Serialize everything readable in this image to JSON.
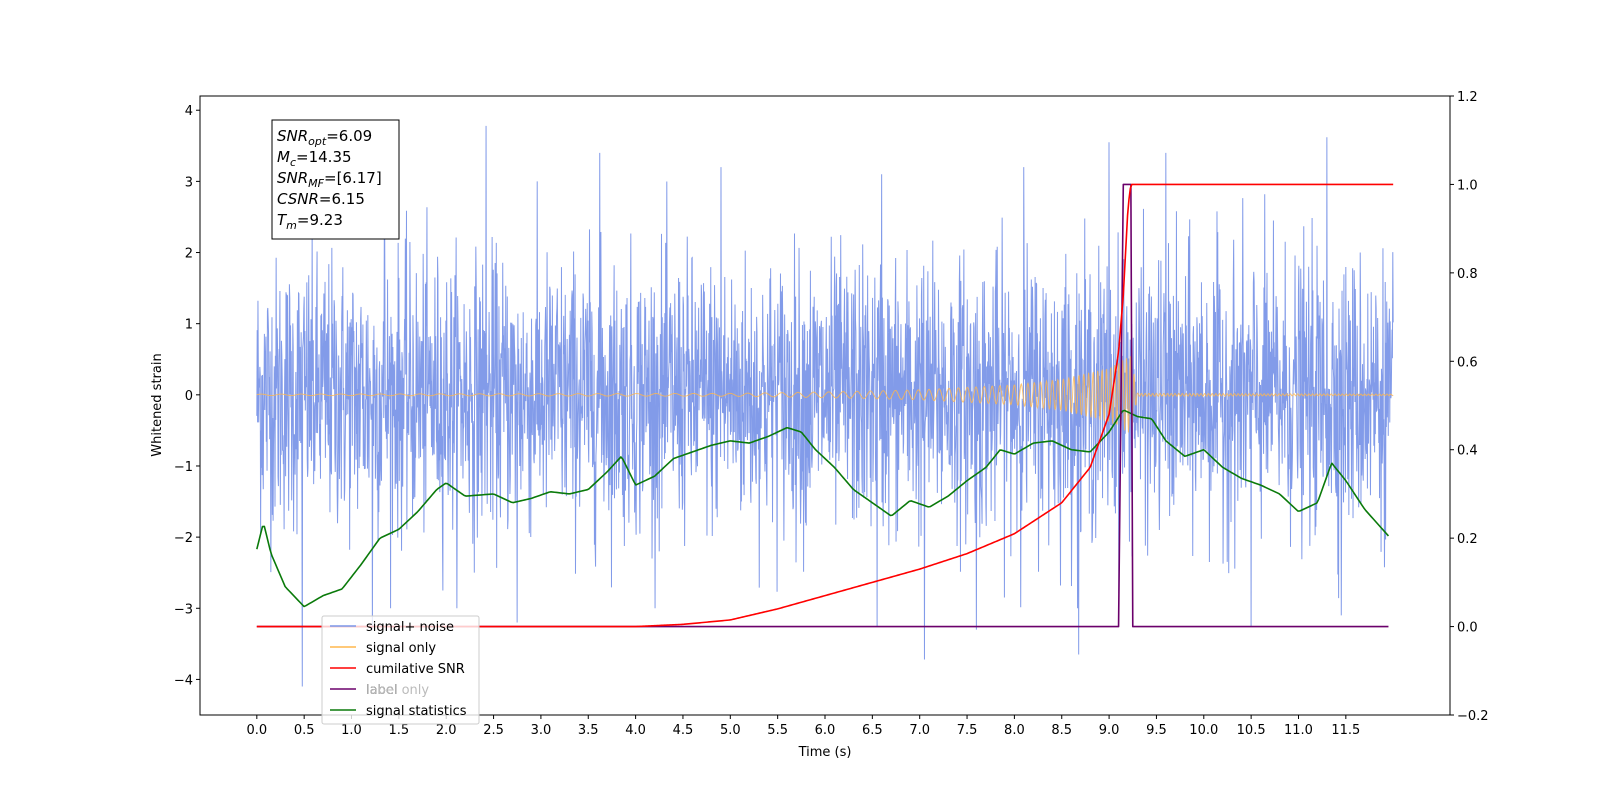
{
  "chart_data": {
    "type": "line",
    "title": "",
    "xlabel": "Time (s)",
    "ylabel": "Whitened strain",
    "ylabel_right": "",
    "xlim": [
      -0.6,
      12.6
    ],
    "ylim_left": [
      -4.5,
      4.2
    ],
    "ylim_right": [
      -0.2,
      1.2
    ],
    "x_ticks": [
      0.0,
      0.5,
      1.0,
      1.5,
      2.0,
      2.5,
      3.0,
      3.5,
      4.0,
      4.5,
      5.0,
      5.5,
      6.0,
      6.5,
      7.0,
      7.5,
      8.0,
      8.5,
      9.0,
      9.5,
      10.0,
      10.5,
      11.0,
      11.5
    ],
    "x_tick_labels": [
      "0.0",
      "0.5",
      "1.0",
      "1.5",
      "2.0",
      "2.5",
      "3.0",
      "3.5",
      "4.0",
      "4.5",
      "5.0",
      "5.5",
      "6.0",
      "6.5",
      "7.0",
      "7.5",
      "8.0",
      "8.5",
      "9.0",
      "9.5",
      "10.0",
      "10.5",
      "11.0",
      "11.5"
    ],
    "y_ticks_left": [
      -4,
      -3,
      -2,
      -1,
      0,
      1,
      2,
      3,
      4
    ],
    "y_tick_labels_left": [
      "−4",
      "−3",
      "−2",
      "−1",
      "0",
      "1",
      "2",
      "3",
      "4"
    ],
    "y_ticks_right": [
      -0.2,
      0.0,
      0.2,
      0.4,
      0.6,
      0.8,
      1.0,
      1.2
    ],
    "y_tick_labels_right": [
      "−0.2",
      "0.0",
      "0.2",
      "0.4",
      "0.6",
      "0.8",
      "1.0",
      "1.2"
    ],
    "grid": false,
    "legend_position": "lower-left",
    "annotation": {
      "lines": [
        {
          "sym": "SNR",
          "sub": "opt",
          "val": "=6.09"
        },
        {
          "sym": "M",
          "sub": "c",
          "val": "=14.35"
        },
        {
          "sym": "SNR",
          "sub": "MF",
          "val": "=[6.17]"
        },
        {
          "sym": "CSNR",
          "sub": "",
          "val": "=6.15"
        },
        {
          "sym": "T",
          "sub": "m",
          "val": "=9.23"
        }
      ]
    },
    "series": [
      {
        "name": "signal+ noise",
        "axis": "left",
        "color": "#7b96e8",
        "noise_envelope": {
          "x_start": 0.0,
          "x_end": 12.0,
          "typical_band": [
            -1.6,
            1.6
          ],
          "max": 3.78,
          "min": -4.1
        },
        "peaks": [
          {
            "x": 2.42,
            "y": 3.78
          },
          {
            "x": 11.3,
            "y": 3.62
          },
          {
            "x": 9.0,
            "y": 3.55
          },
          {
            "x": 9.6,
            "y": 3.4
          },
          {
            "x": 3.62,
            "y": 3.4
          },
          {
            "x": 1.35,
            "y": 3.3
          },
          {
            "x": 4.9,
            "y": 3.2
          },
          {
            "x": 6.6,
            "y": 3.1
          },
          {
            "x": 8.1,
            "y": 3.2
          },
          {
            "x": 0.48,
            "y": -4.1
          },
          {
            "x": 7.05,
            "y": -3.72
          },
          {
            "x": 8.68,
            "y": -3.65
          },
          {
            "x": 1.22,
            "y": -3.3
          },
          {
            "x": 2.75,
            "y": -3.2
          },
          {
            "x": 6.55,
            "y": -3.25
          },
          {
            "x": 7.6,
            "y": -3.3
          },
          {
            "x": 10.5,
            "y": -3.25
          },
          {
            "x": 11.45,
            "y": -3.1
          }
        ]
      },
      {
        "name": "signal only",
        "axis": "left",
        "color": "#ffb74d",
        "amplitude_envelope": {
          "x": [
            0.0,
            5.0,
            6.0,
            7.0,
            8.0,
            8.5,
            9.0,
            9.23,
            9.3,
            12.0
          ],
          "amp": [
            0.01,
            0.02,
            0.04,
            0.07,
            0.14,
            0.22,
            0.38,
            0.55,
            0.02,
            0.01
          ]
        }
      },
      {
        "name": "cumilative SNR",
        "axis": "right",
        "color": "#ff0000",
        "x": [
          0.0,
          4.0,
          4.5,
          5.0,
          5.5,
          6.0,
          6.5,
          7.0,
          7.5,
          8.0,
          8.5,
          8.8,
          9.0,
          9.1,
          9.15,
          9.2,
          9.23,
          12.0
        ],
        "y": [
          0.0,
          0.0,
          0.005,
          0.015,
          0.04,
          0.07,
          0.1,
          0.13,
          0.165,
          0.21,
          0.28,
          0.36,
          0.48,
          0.62,
          0.75,
          0.95,
          1.0,
          1.0
        ]
      },
      {
        "name": "label",
        "axis": "right",
        "color": "#6b006b",
        "x": [
          0.0,
          9.1,
          9.15,
          9.23,
          9.25,
          11.95
        ],
        "y": [
          0.0,
          0.0,
          1.0,
          1.0,
          0.0,
          0.0
        ]
      },
      {
        "name": "label only",
        "axis": "right",
        "color": "#cccccc",
        "hidden": true
      },
      {
        "name": "signal statistics",
        "axis": "right",
        "color": "#0a7a0a",
        "x": [
          0.0,
          0.07,
          0.15,
          0.3,
          0.5,
          0.7,
          0.9,
          1.1,
          1.3,
          1.5,
          1.7,
          1.9,
          2.0,
          2.2,
          2.5,
          2.7,
          2.9,
          3.1,
          3.3,
          3.5,
          3.7,
          3.85,
          4.0,
          4.2,
          4.4,
          4.6,
          4.8,
          5.0,
          5.2,
          5.4,
          5.6,
          5.75,
          5.9,
          6.1,
          6.3,
          6.5,
          6.7,
          6.9,
          7.1,
          7.3,
          7.5,
          7.7,
          7.85,
          8.0,
          8.2,
          8.4,
          8.6,
          8.8,
          9.0,
          9.15,
          9.3,
          9.45,
          9.6,
          9.8,
          10.0,
          10.2,
          10.4,
          10.6,
          10.8,
          11.0,
          11.2,
          11.35,
          11.5,
          11.7,
          11.95
        ],
        "y": [
          0.175,
          0.235,
          0.165,
          0.09,
          0.045,
          0.07,
          0.085,
          0.14,
          0.2,
          0.22,
          0.26,
          0.31,
          0.325,
          0.295,
          0.3,
          0.28,
          0.29,
          0.305,
          0.3,
          0.31,
          0.35,
          0.385,
          0.32,
          0.34,
          0.38,
          0.395,
          0.41,
          0.42,
          0.415,
          0.43,
          0.45,
          0.44,
          0.4,
          0.36,
          0.31,
          0.28,
          0.25,
          0.285,
          0.27,
          0.295,
          0.33,
          0.36,
          0.4,
          0.39,
          0.415,
          0.42,
          0.4,
          0.395,
          0.44,
          0.49,
          0.475,
          0.47,
          0.42,
          0.385,
          0.4,
          0.36,
          0.335,
          0.32,
          0.3,
          0.26,
          0.28,
          0.37,
          0.33,
          0.265,
          0.205
        ]
      }
    ]
  }
}
